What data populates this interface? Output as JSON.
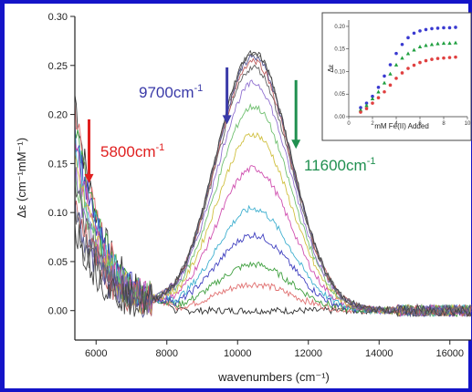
{
  "chart_data": [
    {
      "type": "line",
      "title": "",
      "xlabel": "wavenumbers (cm⁻¹)",
      "ylabel": "Δε (cm⁻¹mM⁻¹)",
      "xlim": [
        5400,
        16600
      ],
      "ylim": [
        -0.03,
        0.3
      ],
      "x_ticks": [
        6000,
        8000,
        10000,
        12000,
        14000,
        16000
      ],
      "x_tick_labels": [
        "6000",
        "8000",
        "10000",
        "12000",
        "14000",
        "16000"
      ],
      "y_ticks": [
        0.0,
        0.05,
        0.1,
        0.15,
        0.2,
        0.25,
        0.3
      ],
      "y_tick_labels": [
        "0.00",
        "0.05",
        "0.10",
        "0.15",
        "0.20",
        "0.25",
        "0.30"
      ],
      "grid": false,
      "band": {
        "peak_center": 10450,
        "sigma": 1050,
        "low_energy_tail_at_5400": 0.22,
        "amplitudes": [
          0.0,
          0.027,
          0.047,
          0.077,
          0.104,
          0.145,
          0.18,
          0.208,
          0.232,
          0.248,
          0.255,
          0.259,
          0.262,
          0.264
        ],
        "colors": [
          "#333333",
          "#e07070",
          "#40a040",
          "#4040c0",
          "#40b0d0",
          "#d050b0",
          "#d0c040",
          "#70c070",
          "#9070d0",
          "#606060",
          "#c06060",
          "#505090",
          "#707070",
          "#444444"
        ]
      },
      "annotations": [
        {
          "text": "9700cm",
          "superscript": "-1",
          "color": "#3a3aa8",
          "arrow_x": 9700,
          "arrow_direction": "down",
          "arrow_y_from": 0.248,
          "arrow_y_to": 0.19
        },
        {
          "text": "5800cm",
          "superscript": "-1",
          "color": "#e02020",
          "arrow_x": 5800,
          "arrow_direction": "down",
          "arrow_y_from": 0.195,
          "arrow_y_to": 0.13
        },
        {
          "text": "11600cm",
          "superscript": "-1",
          "color": "#209050",
          "arrow_x": 11650,
          "arrow_direction": "down",
          "arrow_y_from": 0.235,
          "arrow_y_to": 0.165
        }
      ]
    },
    {
      "type": "scatter",
      "title": "",
      "xlabel": "mM Fe(II) Added",
      "ylabel": "Δε",
      "xlim": [
        0,
        10
      ],
      "ylim": [
        0,
        0.21
      ],
      "y_ticks": [
        0.0,
        0.05,
        0.1,
        0.15,
        0.2
      ],
      "y_tick_labels": [
        "0.00",
        "0.05",
        "0.10",
        "0.15",
        "0.20"
      ],
      "x_ticks": [
        0,
        2,
        4,
        6,
        8,
        10
      ],
      "x_tick_labels": [
        "0",
        "2",
        "4",
        "6",
        "8",
        "10"
      ],
      "series": [
        {
          "color": "#3a3ad0",
          "marker": "circle",
          "x": [
            1,
            1.5,
            2,
            2.5,
            3,
            3.5,
            4,
            4.5,
            5,
            5.5,
            6,
            6.5,
            7,
            7.5,
            8,
            8.5,
            9
          ],
          "y": [
            0.02,
            0.03,
            0.045,
            0.065,
            0.09,
            0.115,
            0.14,
            0.16,
            0.175,
            0.185,
            0.19,
            0.193,
            0.195,
            0.196,
            0.197,
            0.197,
            0.198
          ]
        },
        {
          "color": "#20a040",
          "marker": "triangle",
          "x": [
            1,
            1.5,
            2,
            2.5,
            3,
            3.5,
            4,
            4.5,
            5,
            5.5,
            6,
            6.5,
            7,
            7.5,
            8,
            8.5,
            9
          ],
          "y": [
            0.015,
            0.025,
            0.04,
            0.055,
            0.075,
            0.095,
            0.115,
            0.13,
            0.14,
            0.148,
            0.155,
            0.158,
            0.16,
            0.162,
            0.163,
            0.163,
            0.164
          ]
        },
        {
          "color": "#e04040",
          "marker": "circle",
          "x": [
            1,
            1.5,
            2,
            2.5,
            3,
            3.5,
            4,
            4.5,
            5,
            5.5,
            6,
            6.5,
            7,
            7.5,
            8,
            8.5,
            9
          ],
          "y": [
            0.01,
            0.018,
            0.03,
            0.042,
            0.055,
            0.07,
            0.085,
            0.097,
            0.107,
            0.114,
            0.12,
            0.124,
            0.127,
            0.129,
            0.13,
            0.131,
            0.132
          ]
        }
      ]
    }
  ]
}
